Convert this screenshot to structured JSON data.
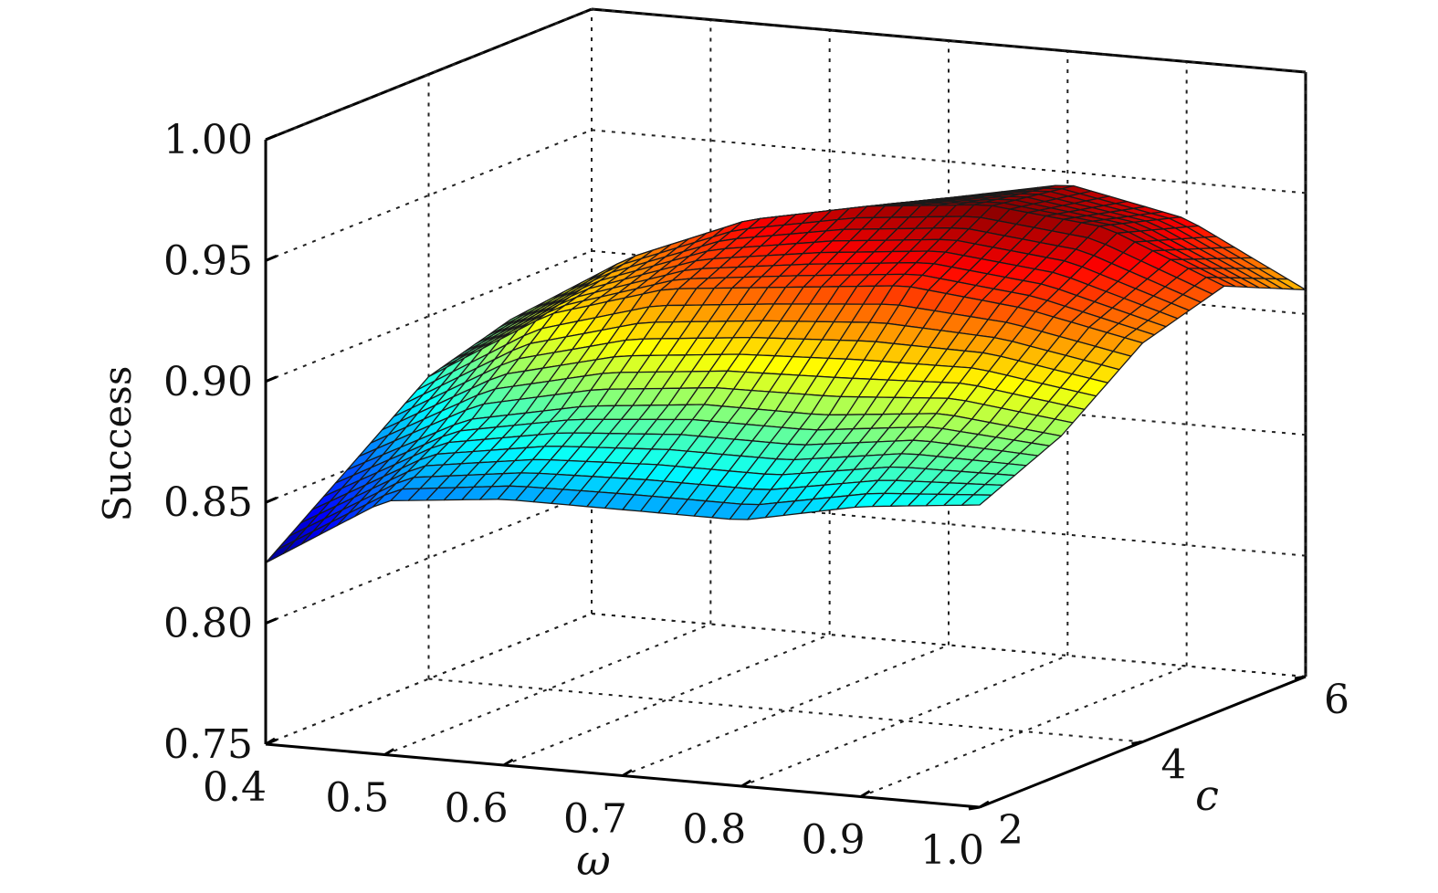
{
  "chart_data": {
    "type": "surface",
    "x_axis": {
      "label": "ω",
      "ticks": [
        "0.4",
        "0.5",
        "0.6",
        "0.7",
        "0.8",
        "0.9",
        "1.0"
      ],
      "range": [
        0.4,
        1.0
      ]
    },
    "y_axis": {
      "label": "c",
      "ticks": [
        "2",
        "4",
        "6"
      ],
      "range": [
        2,
        6
      ]
    },
    "z_axis": {
      "label": "Success",
      "ticks": [
        "0.75",
        "0.80",
        "0.85",
        "0.90",
        "0.95",
        "1.00"
      ],
      "range": [
        0.75,
        1.0
      ]
    },
    "grid": true,
    "colormap": "jet",
    "omega": [
      0.4,
      0.5,
      0.6,
      0.7,
      0.8,
      0.9,
      1.0
    ],
    "c": [
      2.0,
      3.0,
      4.0,
      5.0,
      6.0
    ],
    "success": [
      [
        0.825,
        0.85,
        0.875,
        0.885,
        0.88
      ],
      [
        0.855,
        0.875,
        0.905,
        0.915,
        0.905
      ],
      [
        0.86,
        0.885,
        0.92,
        0.935,
        0.925
      ],
      [
        0.86,
        0.89,
        0.925,
        0.945,
        0.935
      ],
      [
        0.86,
        0.89,
        0.93,
        0.95,
        0.945
      ],
      [
        0.87,
        0.895,
        0.925,
        0.945,
        0.935
      ],
      [
        0.875,
        0.89,
        0.915,
        0.925,
        0.91
      ]
    ]
  }
}
